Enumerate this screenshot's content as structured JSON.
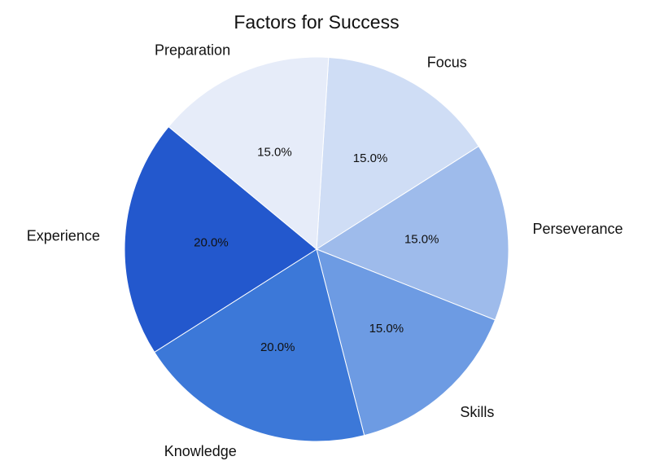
{
  "chart_data": {
    "type": "pie",
    "title": "Factors for Success",
    "slices": [
      {
        "label": "Focus",
        "value": 15.0,
        "display": "15.0%",
        "color": "#cfddf5"
      },
      {
        "label": "Perseverance",
        "value": 15.0,
        "display": "15.0%",
        "color": "#9ebbeb"
      },
      {
        "label": "Skills",
        "value": 15.0,
        "display": "15.0%",
        "color": "#6d9be3"
      },
      {
        "label": "Knowledge",
        "value": 20.0,
        "display": "20.0%",
        "color": "#3c78d8"
      },
      {
        "label": "Experience",
        "value": 20.0,
        "display": "20.0%",
        "color": "#2358cd"
      },
      {
        "label": "Preparation",
        "value": 15.0,
        "display": "15.0%",
        "color": "#e6ecf9"
      }
    ]
  }
}
